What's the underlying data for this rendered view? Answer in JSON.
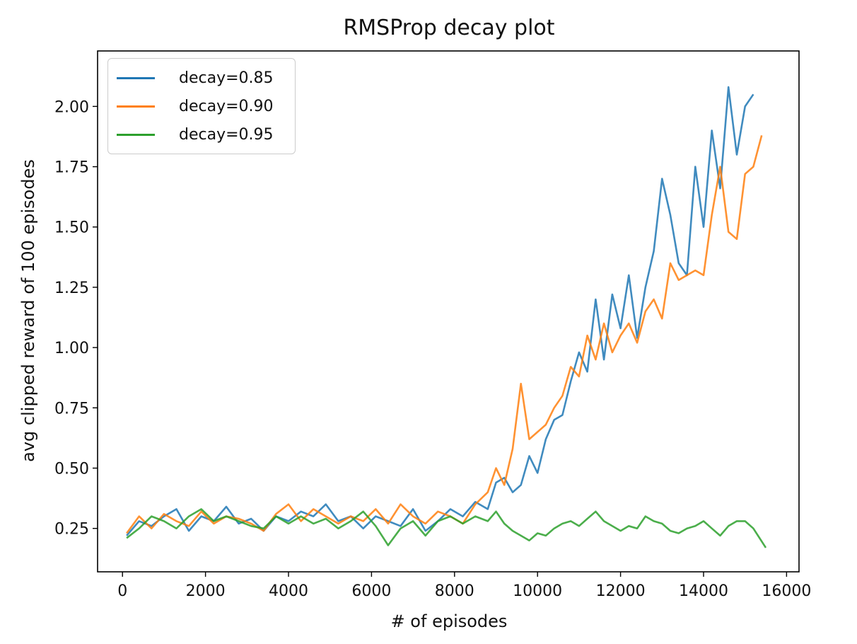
{
  "chart_data": {
    "type": "line",
    "title": "RMSProp decay plot",
    "xlabel": "# of episodes",
    "ylabel": "avg clipped reward of 100 episodes",
    "xlim": [
      -600,
      16300
    ],
    "ylim": [
      0.07,
      2.23
    ],
    "xticks": [
      0,
      2000,
      4000,
      6000,
      8000,
      10000,
      12000,
      14000,
      16000
    ],
    "yticks": [
      0.25,
      0.5,
      0.75,
      1.0,
      1.25,
      1.5,
      1.75,
      2.0
    ],
    "ytick_labels": [
      "0.25",
      "0.50",
      "0.75",
      "1.00",
      "1.25",
      "1.50",
      "1.75",
      "2.00"
    ],
    "legend_position": "upper-left",
    "grid": false,
    "series": [
      {
        "name": "decay=0.85",
        "color": "#1f77b4",
        "x": [
          100,
          400,
          700,
          1000,
          1300,
          1600,
          1900,
          2200,
          2500,
          2800,
          3100,
          3400,
          3700,
          4000,
          4300,
          4600,
          4900,
          5200,
          5500,
          5800,
          6100,
          6400,
          6700,
          7000,
          7300,
          7600,
          7900,
          8200,
          8500,
          8800,
          9000,
          9200,
          9400,
          9600,
          9800,
          10000,
          10200,
          10400,
          10600,
          10800,
          11000,
          11200,
          11400,
          11600,
          11800,
          12000,
          12200,
          12400,
          12600,
          12800,
          13000,
          13200,
          13400,
          13600,
          13800,
          14000,
          14200,
          14400,
          14600,
          14800,
          15000,
          15200
        ],
        "y": [
          0.22,
          0.28,
          0.26,
          0.3,
          0.33,
          0.24,
          0.3,
          0.28,
          0.34,
          0.27,
          0.29,
          0.24,
          0.3,
          0.28,
          0.32,
          0.3,
          0.35,
          0.28,
          0.3,
          0.25,
          0.3,
          0.28,
          0.26,
          0.33,
          0.24,
          0.28,
          0.33,
          0.3,
          0.36,
          0.33,
          0.44,
          0.46,
          0.4,
          0.43,
          0.55,
          0.48,
          0.62,
          0.7,
          0.72,
          0.86,
          0.98,
          0.9,
          1.2,
          0.95,
          1.22,
          1.08,
          1.3,
          1.04,
          1.25,
          1.4,
          1.7,
          1.55,
          1.35,
          1.3,
          1.75,
          1.5,
          1.9,
          1.66,
          2.08,
          1.8,
          2.0,
          2.05
        ]
      },
      {
        "name": "decay=0.90",
        "color": "#ff7f0e",
        "x": [
          100,
          400,
          700,
          1000,
          1300,
          1600,
          1900,
          2200,
          2500,
          2800,
          3100,
          3400,
          3700,
          4000,
          4300,
          4600,
          4900,
          5200,
          5500,
          5800,
          6100,
          6400,
          6700,
          7000,
          7300,
          7600,
          7900,
          8200,
          8500,
          8800,
          9000,
          9200,
          9400,
          9600,
          9800,
          10000,
          10200,
          10400,
          10600,
          10800,
          11000,
          11200,
          11400,
          11600,
          11800,
          12000,
          12200,
          12400,
          12600,
          12800,
          13000,
          13200,
          13400,
          13600,
          13800,
          14000,
          14200,
          14400,
          14600,
          14800,
          15000,
          15200,
          15400
        ],
        "y": [
          0.23,
          0.3,
          0.25,
          0.31,
          0.28,
          0.26,
          0.32,
          0.27,
          0.3,
          0.29,
          0.27,
          0.24,
          0.31,
          0.35,
          0.28,
          0.33,
          0.3,
          0.27,
          0.3,
          0.28,
          0.33,
          0.27,
          0.35,
          0.3,
          0.27,
          0.32,
          0.3,
          0.27,
          0.35,
          0.4,
          0.5,
          0.43,
          0.58,
          0.85,
          0.62,
          0.65,
          0.68,
          0.75,
          0.8,
          0.92,
          0.88,
          1.05,
          0.95,
          1.1,
          0.98,
          1.05,
          1.1,
          1.02,
          1.15,
          1.2,
          1.12,
          1.35,
          1.28,
          1.3,
          1.32,
          1.3,
          1.55,
          1.75,
          1.48,
          1.45,
          1.72,
          1.75,
          1.88
        ]
      },
      {
        "name": "decay=0.95",
        "color": "#2ca02c",
        "x": [
          100,
          400,
          700,
          1000,
          1300,
          1600,
          1900,
          2200,
          2500,
          2800,
          3100,
          3400,
          3700,
          4000,
          4300,
          4600,
          4900,
          5200,
          5500,
          5800,
          6100,
          6400,
          6700,
          7000,
          7300,
          7600,
          7900,
          8200,
          8500,
          8800,
          9000,
          9200,
          9400,
          9600,
          9800,
          10000,
          10200,
          10400,
          10600,
          10800,
          11000,
          11200,
          11400,
          11600,
          11800,
          12000,
          12200,
          12400,
          12600,
          12800,
          13000,
          13200,
          13400,
          13600,
          13800,
          14000,
          14200,
          14400,
          14600,
          14800,
          15000,
          15200,
          15500
        ],
        "y": [
          0.21,
          0.25,
          0.3,
          0.28,
          0.25,
          0.3,
          0.33,
          0.28,
          0.3,
          0.28,
          0.26,
          0.25,
          0.3,
          0.27,
          0.3,
          0.27,
          0.29,
          0.25,
          0.28,
          0.32,
          0.26,
          0.18,
          0.25,
          0.28,
          0.22,
          0.28,
          0.3,
          0.27,
          0.3,
          0.28,
          0.32,
          0.27,
          0.24,
          0.22,
          0.2,
          0.23,
          0.22,
          0.25,
          0.27,
          0.28,
          0.26,
          0.29,
          0.32,
          0.28,
          0.26,
          0.24,
          0.26,
          0.25,
          0.3,
          0.28,
          0.27,
          0.24,
          0.23,
          0.25,
          0.26,
          0.28,
          0.25,
          0.22,
          0.26,
          0.28,
          0.28,
          0.25,
          0.17
        ]
      }
    ]
  }
}
